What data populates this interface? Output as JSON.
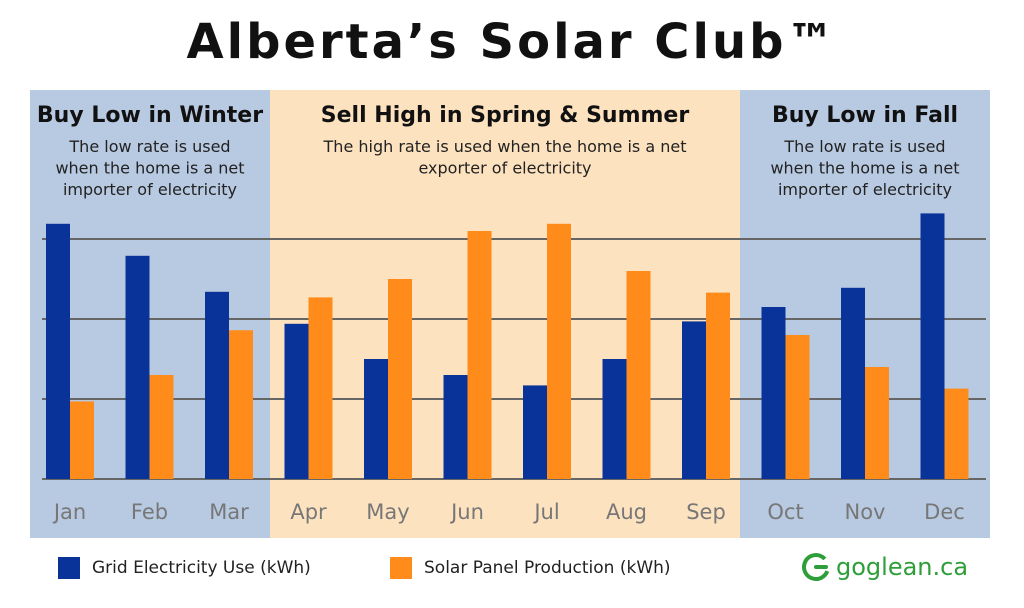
{
  "title": "Alberta’s Solar Club™",
  "panels": [
    {
      "heading": "Buy Low in Winter",
      "desc": [
        "The low rate is used",
        "when the home is a net",
        "importer of electricity"
      ]
    },
    {
      "heading": "Sell High in Spring & Summer",
      "desc": [
        "The high rate is used when the home is a net",
        "exporter of electricity"
      ]
    },
    {
      "heading": "Buy Low in Fall",
      "desc": [
        "The low rate is used",
        "when the home is a net",
        "importer of electricity"
      ]
    }
  ],
  "chart_data": {
    "type": "bar",
    "categories": [
      "Jan",
      "Feb",
      "Mar",
      "Apr",
      "May",
      "Jun",
      "Jul",
      "Aug",
      "Sep",
      "Oct",
      "Nov",
      "Dec"
    ],
    "series": [
      {
        "name": "Grid Electricity Use (kWh)",
        "color": "#0a3399",
        "values": [
          3.19,
          2.79,
          2.34,
          1.94,
          1.5,
          1.3,
          1.17,
          1.5,
          1.97,
          2.15,
          2.39,
          3.32
        ]
      },
      {
        "name": "Solar Panel Production (kWh)",
        "color": "#ff8c1a",
        "values": [
          0.97,
          1.3,
          1.86,
          2.27,
          2.5,
          3.1,
          3.19,
          2.6,
          2.33,
          1.8,
          1.4,
          1.13
        ]
      }
    ],
    "ylim": [
      0,
      3.5
    ],
    "gridlines": [
      1,
      2,
      3
    ],
    "grid": true,
    "legend_position": "bottom"
  },
  "legend": [
    {
      "label": "Grid Electricity Use (kWh)",
      "color": "#0a3399"
    },
    {
      "label": "Solar Panel Production (kWh)",
      "color": "#ff8c1a"
    }
  ],
  "brand": {
    "logo_icon": "goglean-g-logo-icon",
    "text": "goglean.ca",
    "color": "#2e9e3a"
  },
  "colors": {
    "winter_fall_bg": "#b8c9e2",
    "spring_summer_bg": "#fde2c0",
    "grid_line": "#666666",
    "tick_text": "#777777"
  }
}
